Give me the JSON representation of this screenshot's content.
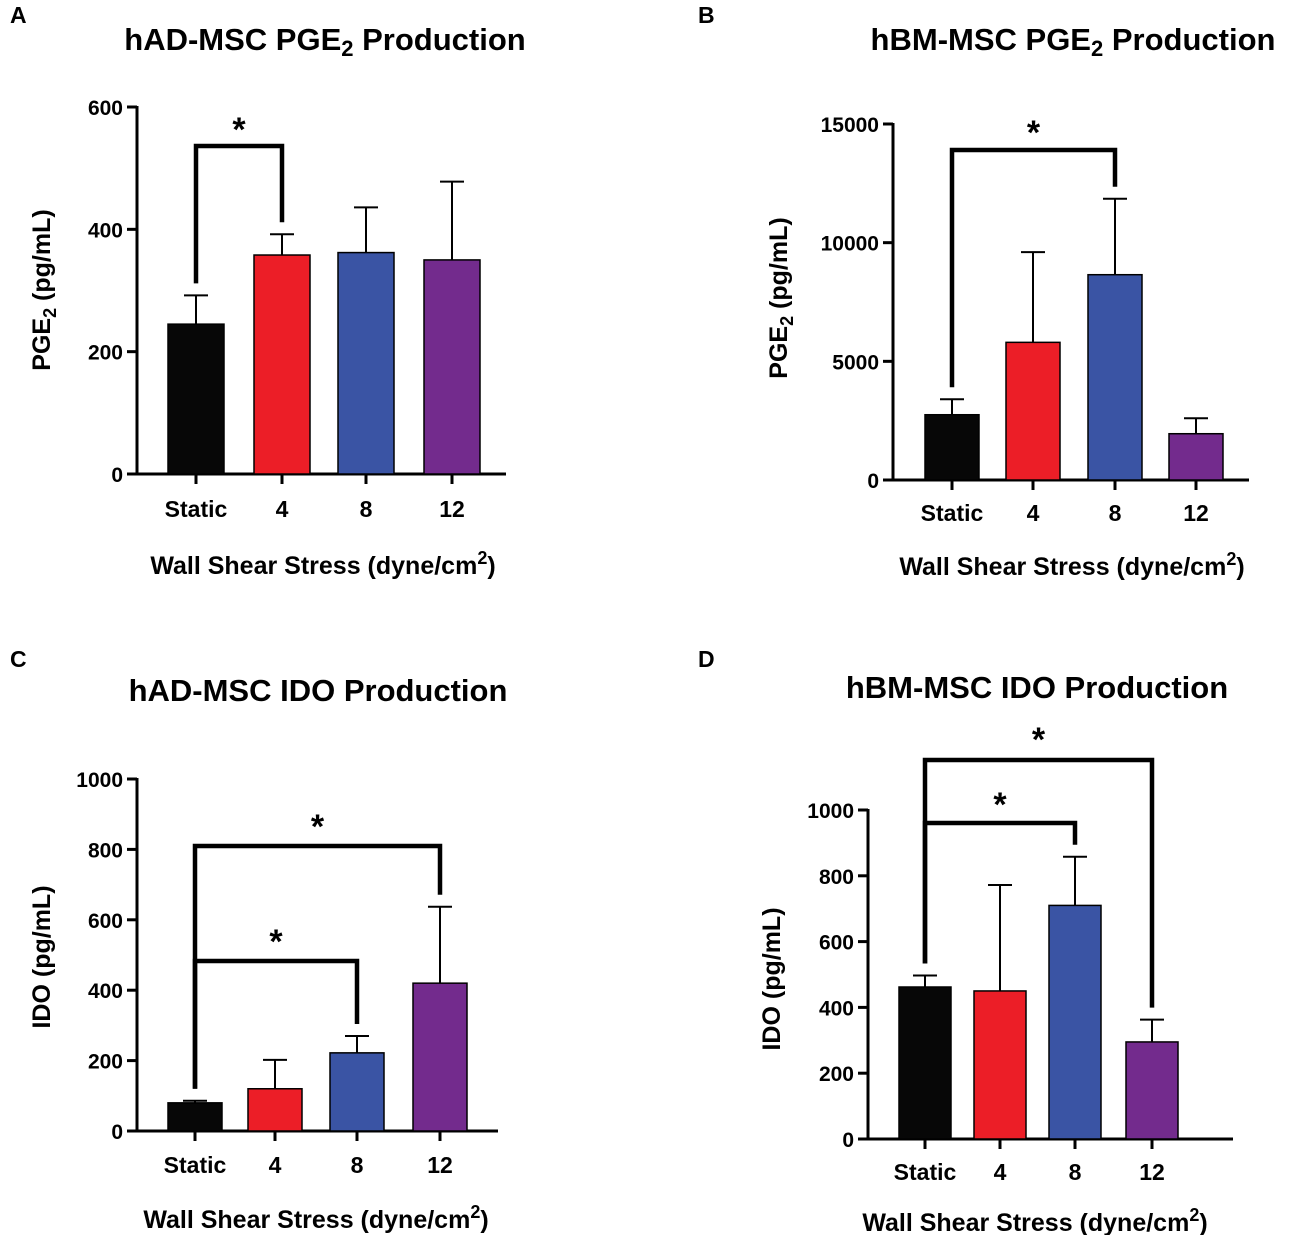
{
  "chart_data": [
    {
      "panel": "A",
      "type": "bar",
      "title": "hAD-MSC PGE",
      "title_sub": "2",
      "title_end": " Production",
      "ylabel": "PGE",
      "ylabel_sub": "2",
      "ylabel_end": " (pg/mL)",
      "xlabel": "Wall Shear Stress (dyne/cm",
      "xlabel_sup": "2",
      "xlabel_end": ")",
      "categories": [
        "Static",
        "4",
        "8",
        "12"
      ],
      "values": [
        245,
        358,
        362,
        350
      ],
      "errors": [
        47,
        34,
        74,
        128
      ],
      "colors": [
        "#070707",
        "#ec1e27",
        "#3a54a4",
        "#732b8d"
      ],
      "ylim": [
        0,
        600
      ],
      "yticks": [
        0,
        200,
        400,
        600
      ],
      "yticklabels": [
        "0",
        "200",
        "400",
        "600"
      ],
      "significance": [
        {
          "from": 0,
          "to": 1,
          "label": "*"
        }
      ]
    },
    {
      "panel": "B",
      "type": "bar",
      "title": "hBM-MSC PGE",
      "title_sub": "2",
      "title_end": " Production",
      "ylabel": "PGE",
      "ylabel_sub": "2",
      "ylabel_end": " (pg/mL)",
      "xlabel": "Wall Shear Stress (dyne/cm",
      "xlabel_sup": "2",
      "xlabel_end": ")",
      "categories": [
        "Static",
        "4",
        "8",
        "12"
      ],
      "values": [
        2750,
        5800,
        8650,
        1950
      ],
      "errors": [
        650,
        3800,
        3200,
        650
      ],
      "colors": [
        "#070707",
        "#ec1e27",
        "#3a54a4",
        "#732b8d"
      ],
      "ylim": [
        0,
        15000
      ],
      "yticks": [
        0,
        5000,
        10000,
        15000
      ],
      "yticklabels": [
        "0",
        "5000",
        "10000",
        "15000"
      ],
      "significance": [
        {
          "from": 0,
          "to": 2,
          "label": "*"
        }
      ]
    },
    {
      "panel": "C",
      "type": "bar",
      "title": "hAD-MSC IDO Production",
      "title_sub": "",
      "title_end": "",
      "ylabel": "IDO (pg/mL)",
      "ylabel_sub": "",
      "ylabel_end": "",
      "xlabel": "Wall Shear Stress (dyne/cm",
      "xlabel_sup": "2",
      "xlabel_end": ")",
      "categories": [
        "Static",
        "4",
        "8",
        "12"
      ],
      "values": [
        80,
        120,
        222,
        420
      ],
      "errors": [
        6,
        82,
        48,
        217
      ],
      "colors": [
        "#070707",
        "#ec1e27",
        "#3a54a4",
        "#732b8d"
      ],
      "ylim": [
        0,
        1000
      ],
      "yticks": [
        0,
        200,
        400,
        600,
        800,
        1000
      ],
      "yticklabels": [
        "0",
        "200",
        "400",
        "600",
        "800",
        "1000"
      ],
      "significance": [
        {
          "from": 0,
          "to": 2,
          "label": "*"
        },
        {
          "from": 0,
          "to": 3,
          "label": "*"
        }
      ]
    },
    {
      "panel": "D",
      "type": "bar",
      "title": "hBM-MSC IDO Production",
      "title_sub": "",
      "title_end": "",
      "ylabel": "IDO (pg/mL)",
      "ylabel_sub": "",
      "ylabel_end": "",
      "xlabel": "Wall Shear Stress (dyne/cm",
      "xlabel_sup": "2",
      "xlabel_end": ")",
      "categories": [
        "Static",
        "4",
        "8",
        "12"
      ],
      "values": [
        462,
        450,
        710,
        295
      ],
      "errors": [
        35,
        322,
        148,
        68
      ],
      "colors": [
        "#070707",
        "#ec1e27",
        "#3a54a4",
        "#732b8d"
      ],
      "ylim": [
        0,
        1000
      ],
      "yticks": [
        0,
        200,
        400,
        600,
        800,
        1000
      ],
      "yticklabels": [
        "0",
        "200",
        "400",
        "600",
        "800",
        "1000"
      ],
      "significance": [
        {
          "from": 0,
          "to": 2,
          "label": "*"
        },
        {
          "from": 0,
          "to": 3,
          "label": "*"
        }
      ]
    }
  ]
}
